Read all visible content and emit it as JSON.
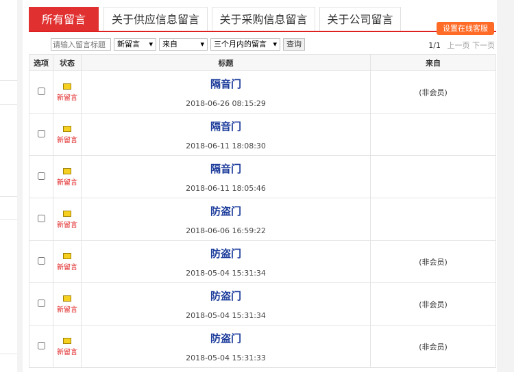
{
  "tabs": [
    {
      "label": "所有留言",
      "active": true
    },
    {
      "label": "关于供应信息留言"
    },
    {
      "label": "关于采购信息留言"
    },
    {
      "label": "关于公司留言"
    }
  ],
  "service_button": "设置在线客服",
  "filters": {
    "placeholder": "请输入留言标题",
    "status": "新留言",
    "from": "来自",
    "period": "三个月内的留言",
    "query": "查询"
  },
  "pager": {
    "page": "1/1",
    "prev": "上一页",
    "next": "下一页"
  },
  "columns": [
    "选项",
    "状态",
    "标题",
    "来自"
  ],
  "status_label": "新留言",
  "rows": [
    {
      "title": "隔音门",
      "date": "2018-06-26 08:15:29",
      "from": "(非会员)"
    },
    {
      "title": "隔音门",
      "date": "2018-06-11 18:08:30",
      "from": ""
    },
    {
      "title": "隔音门",
      "date": "2018-06-11 18:05:46",
      "from": ""
    },
    {
      "title": "防盗门",
      "date": "2018-06-06 16:59:22",
      "from": ""
    },
    {
      "title": "防盗门",
      "date": "2018-05-04 15:31:34",
      "from": "(非会员)"
    },
    {
      "title": "防盗门",
      "date": "2018-05-04 15:31:34",
      "from": "(非会员)"
    },
    {
      "title": "防盗门",
      "date": "2018-05-04 15:31:33",
      "from": "(非会员)"
    }
  ]
}
